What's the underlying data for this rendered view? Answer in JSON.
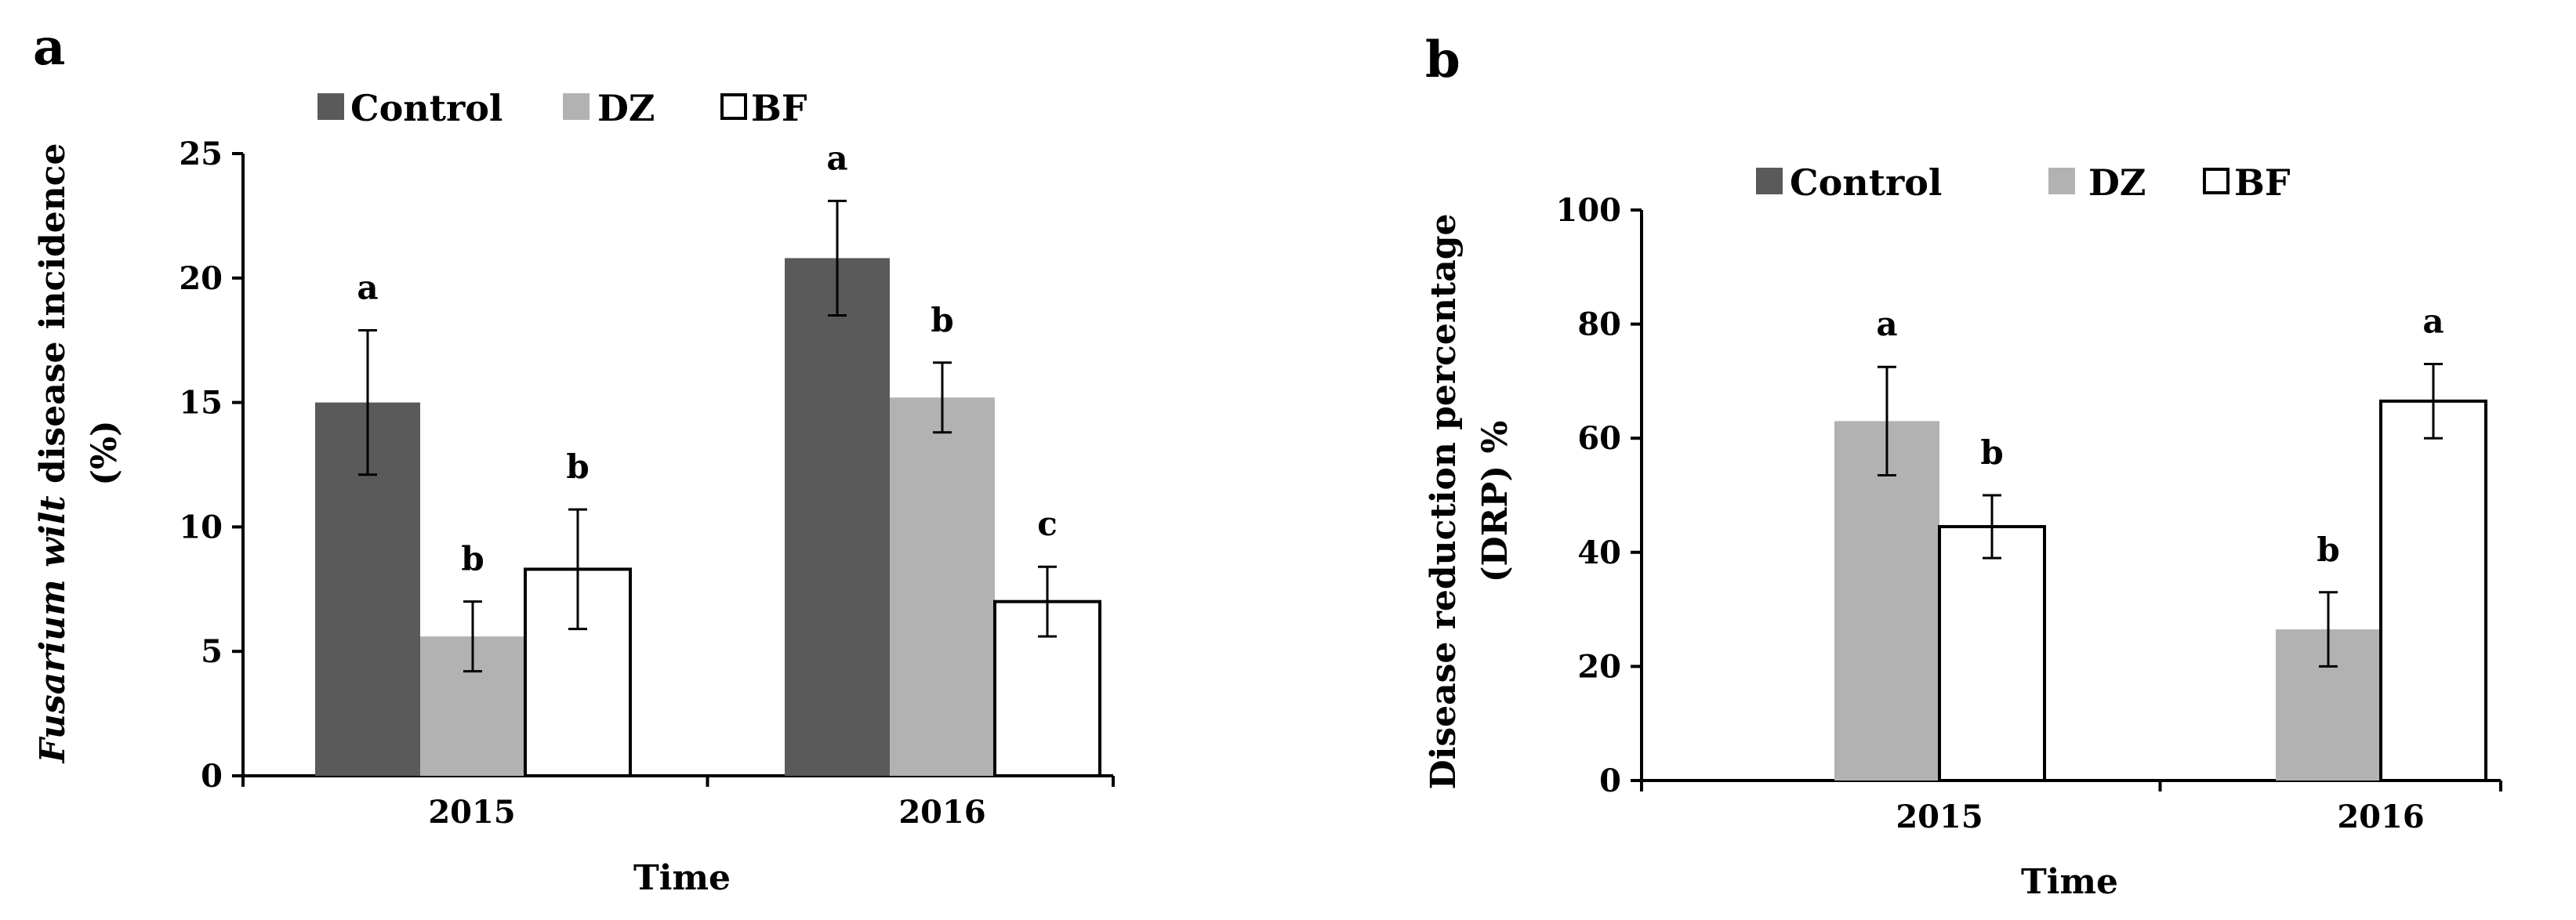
{
  "colors": {
    "control": "#5a5a5a",
    "dz": "#b2b2b2",
    "bf": "#ffffff",
    "axis": "#000000"
  },
  "chart_data": [
    {
      "panel": "a",
      "type": "bar",
      "categories": [
        "2015",
        "2016"
      ],
      "xlabel": "Time",
      "ylabel_italic": "Fusarium wilt",
      "ylabel_rest": " disease incidence",
      "ylabel_line2": "(%)",
      "ylim": [
        0,
        25
      ],
      "yticks": [
        0,
        5,
        10,
        15,
        20,
        25
      ],
      "legend": [
        "Control",
        "DZ",
        "BF"
      ],
      "series": [
        {
          "name": "Control",
          "values": [
            15.0,
            20.8
          ],
          "errors": [
            2.9,
            2.3
          ],
          "letters": [
            "a",
            "a"
          ]
        },
        {
          "name": "DZ",
          "values": [
            5.6,
            15.2
          ],
          "errors": [
            1.4,
            1.4
          ],
          "letters": [
            "b",
            "b"
          ]
        },
        {
          "name": "BF",
          "values": [
            8.3,
            7.0
          ],
          "errors": [
            2.4,
            1.4
          ],
          "letters": [
            "b",
            "c"
          ]
        }
      ]
    },
    {
      "panel": "b",
      "type": "bar",
      "categories": [
        "2015",
        "2016"
      ],
      "xlabel": "Time",
      "ylabel_line1": "Disease reduction percentage",
      "ylabel_line2": "(DRP) %",
      "ylim": [
        0,
        100
      ],
      "yticks": [
        0,
        20,
        40,
        60,
        80,
        100
      ],
      "legend": [
        "Control",
        "DZ",
        "BF"
      ],
      "series": [
        {
          "name": "DZ",
          "values": [
            63,
            26.5
          ],
          "errors": [
            9.5,
            6.5
          ],
          "letters": [
            "a",
            "b"
          ]
        },
        {
          "name": "BF",
          "values": [
            44.5,
            66.5
          ],
          "errors": [
            5.5,
            6.5
          ],
          "letters": [
            "b",
            "a"
          ]
        }
      ]
    }
  ]
}
